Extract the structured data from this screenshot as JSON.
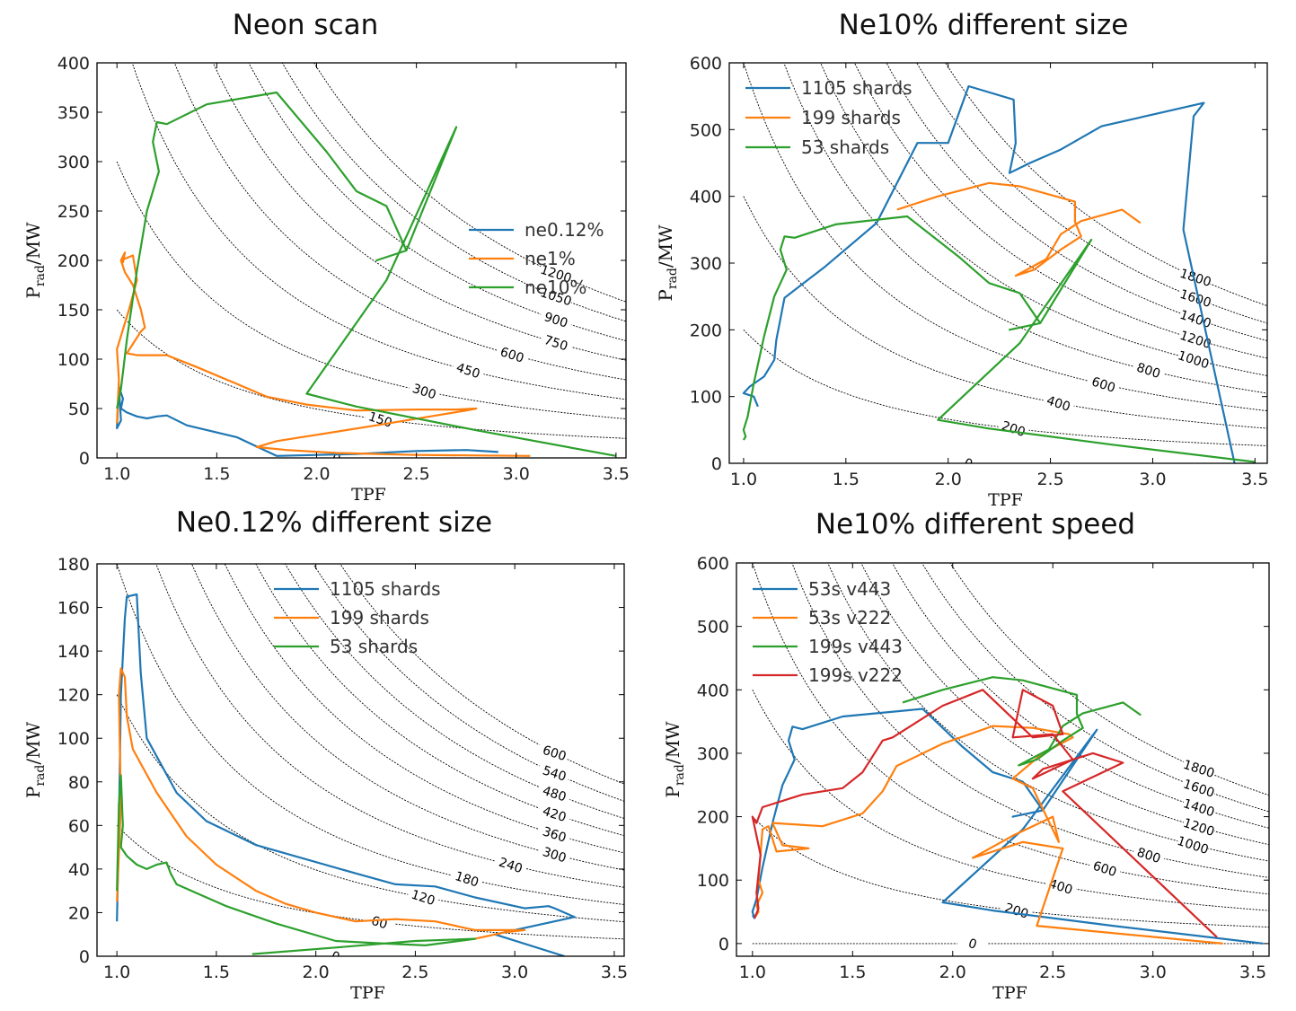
{
  "colors": {
    "blue": "#1f77b4",
    "orange": "#ff7f0e",
    "green": "#2ca02c",
    "red": "#d62728",
    "contour": "#000000"
  },
  "chart_data": [
    {
      "type": "line",
      "title": "Neon scan",
      "xlabel": "TPF",
      "ylabel": {
        "main": "P",
        "sub": "rad",
        "rest": "/MW"
      },
      "xlim": [
        0.9,
        3.55
      ],
      "ylim": [
        0,
        400
      ],
      "xticks": [
        "1.0",
        "1.5",
        "2.0",
        "2.5",
        "3.0",
        "3.5"
      ],
      "yticks": [
        "0",
        "50",
        "100",
        "150",
        "200",
        "250",
        "300",
        "350",
        "400"
      ],
      "legend": "center-right",
      "contours": {
        "levels": [
          "0",
          "150",
          "300",
          "450",
          "600",
          "750",
          "900",
          "1050",
          "1200"
        ],
        "values": [
          0,
          150,
          300,
          450,
          600,
          750,
          900,
          1050,
          1200
        ]
      },
      "series": [
        {
          "name": "ne0.12%",
          "color": "blue",
          "x": [
            2.91,
            2.75,
            2.5,
            2.2,
            2.0,
            1.8,
            1.6,
            1.35,
            1.3,
            1.25,
            1.2,
            1.15,
            1.1,
            1.05,
            1.02,
            1.03,
            1.01,
            1.02,
            1.0,
            1.01
          ],
          "y": [
            6,
            8,
            7,
            4,
            3,
            2,
            21,
            33,
            38,
            43,
            42,
            40,
            42,
            46,
            50,
            60,
            72,
            38,
            30,
            75
          ]
        },
        {
          "name": "ne1%",
          "color": "orange",
          "x": [
            3.07,
            2.5,
            2.1,
            1.85,
            1.7,
            1.8,
            2.3,
            2.6,
            2.75,
            2.8,
            2.7,
            2.5,
            2.2,
            1.95,
            1.75,
            1.6,
            1.4,
            1.25,
            1.1,
            1.05,
            1.12,
            1.14,
            1.12,
            1.08,
            1.04,
            1.02,
            1.03,
            1.04,
            1.02,
            1.08,
            1.1,
            1.06,
            1.0,
            1.01,
            1.0
          ],
          "y": [
            2,
            3,
            5,
            8,
            11,
            17,
            33,
            43,
            48,
            50,
            49,
            49,
            48,
            54,
            62,
            75,
            92,
            104,
            104,
            106,
            128,
            132,
            150,
            175,
            188,
            200,
            198,
            208,
            200,
            205,
            180,
            150,
            110,
            80,
            35
          ]
        },
        {
          "name": "ne10%",
          "color": "green",
          "x": [
            3.5,
            2.8,
            2.2,
            1.95,
            2.35,
            2.7,
            2.45,
            2.3,
            2.45,
            2.35,
            2.2,
            2.05,
            1.8,
            1.45,
            1.25,
            1.2,
            1.18,
            1.21,
            1.15,
            1.1,
            1.05,
            1.02,
            1.0
          ],
          "y": [
            2,
            28,
            52,
            65,
            180,
            335,
            210,
            200,
            210,
            255,
            270,
            310,
            370,
            358,
            338,
            340,
            320,
            290,
            250,
            190,
            120,
            70,
            50
          ]
        }
      ]
    },
    {
      "type": "line",
      "title": "Ne10% different size",
      "xlabel": "TPF",
      "ylabel": {
        "main": "P",
        "sub": "rad",
        "rest": "/MW"
      },
      "xlim": [
        0.93,
        3.56
      ],
      "ylim": [
        0,
        600
      ],
      "xticks": [
        "1.0",
        "1.5",
        "2.0",
        "2.5",
        "3.0",
        "3.5"
      ],
      "yticks": [
        "0",
        "100",
        "200",
        "300",
        "400",
        "500",
        "600"
      ],
      "legend": "upper-left",
      "contours": {
        "levels": [
          "0",
          "200",
          "400",
          "600",
          "800",
          "1000",
          "1200",
          "1400",
          "1600",
          "1800"
        ],
        "values": [
          0,
          200,
          400,
          600,
          800,
          1000,
          1200,
          1400,
          1600,
          1800
        ]
      },
      "series": [
        {
          "name": "1105 shards",
          "color": "blue",
          "x": [
            3.4,
            3.15,
            3.2,
            3.25,
            2.75,
            2.55,
            2.4,
            2.3,
            2.33,
            2.32,
            2.1,
            2.0,
            1.85,
            1.65,
            1.4,
            1.2,
            1.16,
            1.15,
            1.1,
            1.03,
            1.0,
            1.05,
            1.07
          ],
          "y": [
            0,
            350,
            520,
            540,
            505,
            470,
            450,
            435,
            480,
            545,
            565,
            480,
            480,
            360,
            295,
            248,
            185,
            155,
            130,
            115,
            105,
            100,
            85
          ]
        },
        {
          "name": "199 shards",
          "color": "orange",
          "x": [
            2.94,
            2.85,
            2.65,
            2.55,
            2.48,
            2.33,
            2.42,
            2.55,
            2.65,
            2.62,
            2.62,
            2.35,
            2.2,
            1.95,
            1.75
          ],
          "y": [
            360,
            380,
            363,
            343,
            306,
            281,
            290,
            320,
            340,
            362,
            392,
            415,
            420,
            400,
            380
          ]
        },
        {
          "name": "53 shards",
          "color": "green",
          "x": [
            3.5,
            2.8,
            2.2,
            1.95,
            2.35,
            2.7,
            2.45,
            2.3,
            2.45,
            2.35,
            2.2,
            2.05,
            1.8,
            1.45,
            1.25,
            1.2,
            1.18,
            1.21,
            1.15,
            1.1,
            1.05,
            1.02,
            1.0,
            1.01,
            1.0
          ],
          "y": [
            2,
            28,
            52,
            65,
            180,
            335,
            210,
            200,
            210,
            255,
            270,
            310,
            370,
            358,
            338,
            340,
            320,
            290,
            250,
            190,
            120,
            70,
            50,
            40,
            35
          ]
        }
      ]
    },
    {
      "type": "line",
      "title": "Ne0.12% different size",
      "xlabel": "TPF",
      "ylabel": {
        "main": "P",
        "sub": "rad",
        "rest": "/MW"
      },
      "xlim": [
        0.9,
        3.55
      ],
      "ylim": [
        0,
        180
      ],
      "xticks": [
        "1.0",
        "1.5",
        "2.0",
        "2.5",
        "3.0",
        "3.5"
      ],
      "yticks": [
        "0",
        "20",
        "40",
        "60",
        "80",
        "100",
        "120",
        "140",
        "160",
        "180"
      ],
      "legend": "upper-center",
      "contours": {
        "levels": [
          "0",
          "60",
          "120",
          "180",
          "240",
          "300",
          "360",
          "420",
          "480",
          "540",
          "600"
        ],
        "values": [
          0,
          60,
          120,
          180,
          240,
          300,
          360,
          420,
          480,
          540,
          600
        ]
      },
      "series": [
        {
          "name": "1105 shards",
          "color": "blue",
          "x": [
            3.25,
            2.9,
            3.3,
            3.2,
            3.17,
            3.05,
            2.8,
            2.6,
            2.4,
            2.2,
            1.7,
            1.45,
            1.3,
            1.15,
            1.12,
            1.1,
            1.05,
            1.04,
            1.02,
            1.01,
            1.0
          ],
          "y": [
            0,
            10,
            18,
            22,
            23,
            22,
            27,
            32,
            33,
            38,
            51,
            62,
            75,
            100,
            130,
            166,
            165,
            155,
            120,
            60,
            16
          ]
        },
        {
          "name": "199 shards",
          "color": "orange",
          "x": [
            2.8,
            2.95,
            3.05,
            2.8,
            2.6,
            2.4,
            2.2,
            2.0,
            1.85,
            1.7,
            1.5,
            1.35,
            1.2,
            1.08,
            1.05,
            1.04,
            1.02,
            1.01,
            1.02,
            1.0
          ],
          "y": [
            8,
            11,
            12,
            12,
            16,
            17,
            16,
            20,
            24,
            30,
            42,
            55,
            75,
            95,
            110,
            128,
            132,
            120,
            70,
            25
          ]
        },
        {
          "name": "53 shards",
          "color": "green",
          "x": [
            1.68,
            2.1,
            2.5,
            2.8,
            2.55,
            2.3,
            2.1,
            1.8,
            1.55,
            1.3,
            1.27,
            1.25,
            1.2,
            1.15,
            1.1,
            1.05,
            1.02,
            1.03,
            1.02,
            1.01,
            1.0
          ],
          "y": [
            1,
            4,
            7,
            8,
            5,
            6,
            7,
            15,
            23,
            33,
            38,
            43,
            42,
            40,
            42,
            46,
            50,
            60,
            83,
            70,
            30
          ]
        }
      ]
    },
    {
      "type": "line",
      "title": "Ne10% different speed",
      "xlabel": "TPF",
      "ylabel": {
        "main": "P",
        "sub": "rad",
        "rest": "/MW"
      },
      "xlim": [
        0.92,
        3.58
      ],
      "ylim": [
        -20,
        600
      ],
      "xticks": [
        "1.0",
        "1.5",
        "2.0",
        "2.5",
        "3.0",
        "3.5"
      ],
      "yticks": [
        "0",
        "100",
        "200",
        "300",
        "400",
        "500",
        "600"
      ],
      "legend": "upper-left",
      "contours": {
        "levels": [
          "0",
          "200",
          "400",
          "600",
          "800",
          "1000",
          "1200",
          "1400",
          "1600",
          "1800"
        ],
        "values": [
          0,
          200,
          400,
          600,
          800,
          1000,
          1200,
          1400,
          1600,
          1800
        ]
      },
      "series": [
        {
          "name": "53s v443",
          "color": "blue",
          "x": [
            3.55,
            2.8,
            2.2,
            1.95,
            2.35,
            2.72,
            2.45,
            2.3,
            2.45,
            2.35,
            2.2,
            2.05,
            1.85,
            1.45,
            1.25,
            1.2,
            1.18,
            1.21,
            1.15,
            1.1,
            1.05,
            1.02,
            1.0,
            1.01,
            1.0
          ],
          "y": [
            0,
            28,
            52,
            65,
            180,
            337,
            210,
            200,
            210,
            255,
            270,
            310,
            370,
            358,
            338,
            342,
            320,
            290,
            250,
            190,
            120,
            70,
            50,
            40,
            45
          ]
        },
        {
          "name": "53s v222",
          "color": "orange",
          "x": [
            3.35,
            2.42,
            2.55,
            2.35,
            2.1,
            2.3,
            2.5,
            2.53,
            2.4,
            2.3,
            2.45,
            2.6,
            2.58,
            2.4,
            2.2,
            1.95,
            1.72,
            1.65,
            1.55,
            1.35,
            1.1,
            1.15,
            1.28,
            1.12,
            1.08,
            1.05,
            1.03,
            1.05,
            1.02,
            1.03,
            1.01
          ],
          "y": [
            0,
            28,
            150,
            160,
            135,
            170,
            200,
            160,
            245,
            260,
            300,
            325,
            330,
            340,
            343,
            315,
            280,
            240,
            205,
            185,
            190,
            155,
            150,
            145,
            185,
            180,
            100,
            80,
            60,
            50,
            40
          ]
        },
        {
          "name": "199s v443",
          "color": "green",
          "x": [
            2.94,
            2.85,
            2.65,
            2.55,
            2.48,
            2.33,
            2.42,
            2.55,
            2.65,
            2.62,
            2.62,
            2.35,
            2.2,
            1.95,
            1.75
          ],
          "y": [
            360,
            380,
            363,
            343,
            306,
            281,
            290,
            320,
            340,
            362,
            392,
            415,
            420,
            400,
            380
          ]
        },
        {
          "name": "199s v222",
          "color": "red",
          "x": [
            3.32,
            2.55,
            2.85,
            2.7,
            2.45,
            2.4,
            2.6,
            2.5,
            2.3,
            2.35,
            2.5,
            2.55,
            2.4,
            2.15,
            1.95,
            1.7,
            1.65,
            1.55,
            1.45,
            1.25,
            1.05,
            1.02,
            1.0,
            1.04,
            1.02,
            1.03,
            1.01
          ],
          "y": [
            10,
            240,
            285,
            300,
            275,
            260,
            290,
            330,
            325,
            400,
            375,
            330,
            325,
            400,
            375,
            325,
            320,
            270,
            245,
            235,
            215,
            190,
            200,
            140,
            80,
            55,
            40
          ]
        }
      ]
    }
  ]
}
